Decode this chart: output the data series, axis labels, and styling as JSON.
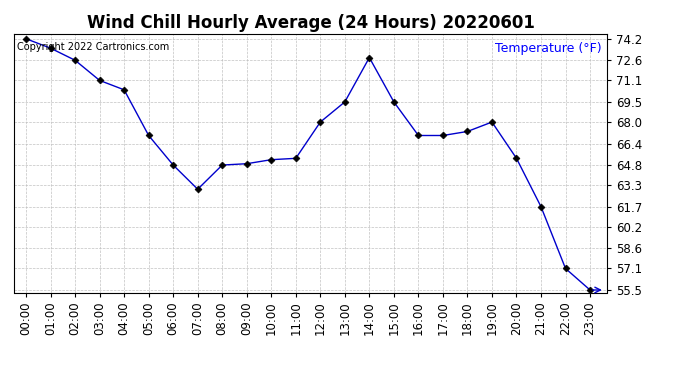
{
  "title": "Wind Chill Hourly Average (24 Hours) 20220601",
  "temp_label": "Temperature (°F)",
  "copyright_text": "Copyright 2022 Cartronics.com",
  "hours": [
    "00:00",
    "01:00",
    "02:00",
    "03:00",
    "04:00",
    "05:00",
    "06:00",
    "07:00",
    "08:00",
    "09:00",
    "10:00",
    "11:00",
    "12:00",
    "13:00",
    "14:00",
    "15:00",
    "16:00",
    "17:00",
    "18:00",
    "19:00",
    "20:00",
    "21:00",
    "22:00",
    "23:00"
  ],
  "values": [
    74.2,
    73.5,
    72.6,
    71.1,
    70.4,
    67.0,
    64.8,
    63.0,
    64.8,
    64.9,
    65.2,
    65.3,
    68.0,
    69.5,
    72.8,
    69.5,
    67.0,
    67.0,
    67.3,
    68.0,
    65.3,
    61.7,
    57.1,
    55.5
  ],
  "line_color": "#0000cc",
  "marker": "D",
  "marker_color": "black",
  "marker_size": 3.5,
  "ylim_min": 55.5,
  "ylim_max": 74.2,
  "yticks": [
    74.2,
    72.6,
    71.1,
    69.5,
    68.0,
    66.4,
    64.8,
    63.3,
    61.7,
    60.2,
    58.6,
    57.1,
    55.5
  ],
  "background_color": "#ffffff",
  "grid_color": "#bbbbbb",
  "title_fontsize": 12,
  "annot_fontsize": 9,
  "tick_fontsize": 8.5,
  "figwidth": 6.9,
  "figheight": 3.75,
  "dpi": 100
}
